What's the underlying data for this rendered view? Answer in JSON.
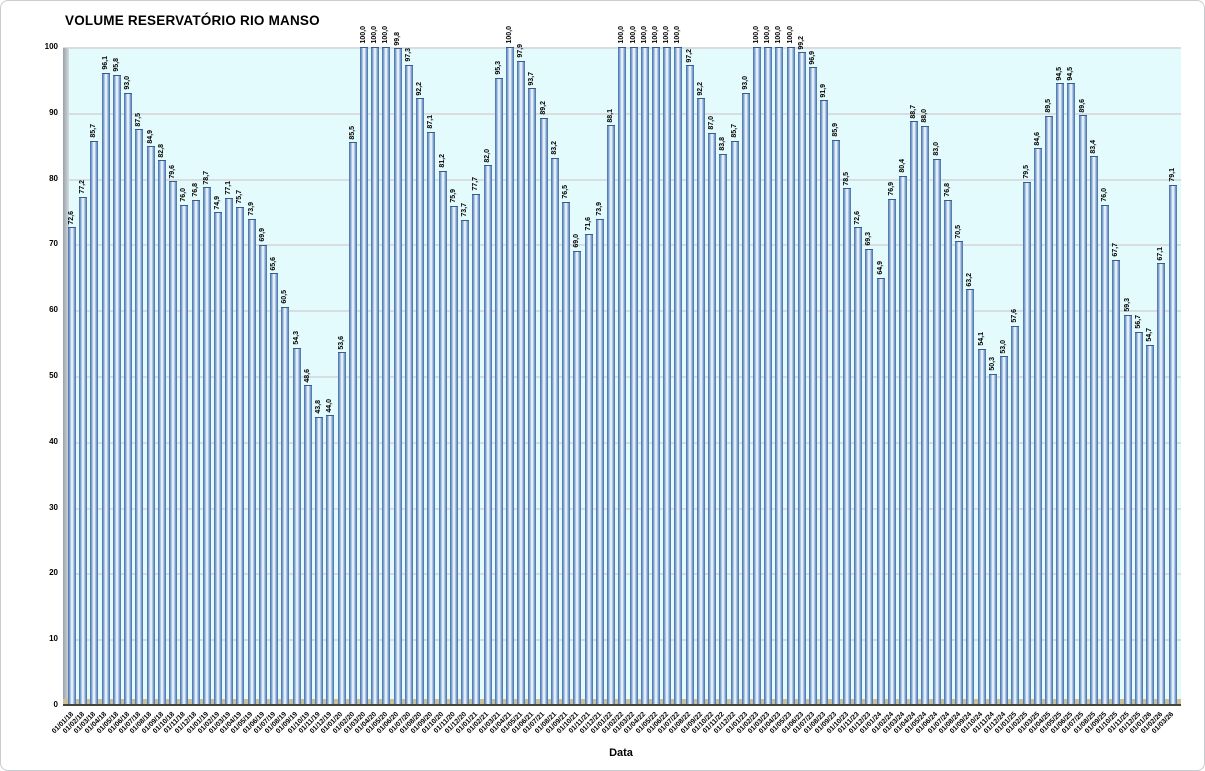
{
  "chart_data": {
    "type": "bar",
    "title": "VOLUME RESERVATÓRIO RIO MANSO",
    "xlabel": "Data",
    "ylabel": "",
    "ylim": [
      0,
      100
    ],
    "y_ticks": [
      "0",
      "10",
      "20",
      "30",
      "40",
      "50",
      "60",
      "70",
      "80",
      "90",
      "100"
    ],
    "grid": "horizontal",
    "legend": "none",
    "decimal_separator": ",",
    "value_label_rotation": 90,
    "category_label_rotation": 45,
    "categories": [
      "01/01/18",
      "01/02/18",
      "01/03/18",
      "01/04/18",
      "01/05/18",
      "01/06/18",
      "01/07/18",
      "01/08/18",
      "01/09/18",
      "01/10/18",
      "01/11/18",
      "01/12/18",
      "01/01/19",
      "01/02/19",
      "01/03/19",
      "01/04/19",
      "01/05/19",
      "01/06/19",
      "01/07/19",
      "01/08/19",
      "01/09/19",
      "01/10/19",
      "01/11/19",
      "01/12/19",
      "01/01/20",
      "01/02/20",
      "01/03/20",
      "01/04/20",
      "01/05/20",
      "01/06/20",
      "01/07/20",
      "01/08/20",
      "01/09/20",
      "01/10/20",
      "01/11/20",
      "01/12/20",
      "01/01/21",
      "01/02/21",
      "01/03/21",
      "01/04/21",
      "01/05/21",
      "01/06/21",
      "01/07/21",
      "01/08/21",
      "01/09/21",
      "01/10/21",
      "01/11/21",
      "01/12/21",
      "01/01/22",
      "01/02/22",
      "01/03/22",
      "01/04/22",
      "01/05/22",
      "01/06/22",
      "01/07/22",
      "01/08/22",
      "01/09/22",
      "01/10/22",
      "01/11/22",
      "01/12/22",
      "01/01/23",
      "01/02/23",
      "01/03/23",
      "01/04/23",
      "01/05/23",
      "01/06/23",
      "01/07/23",
      "01/08/23",
      "01/09/23",
      "01/10/23",
      "01/11/23",
      "01/12/23",
      "01/01/24",
      "01/02/24",
      "01/03/24",
      "01/04/24",
      "01/05/24",
      "01/06/24",
      "01/07/24",
      "01/08/24",
      "01/09/24",
      "01/10/24",
      "01/11/24",
      "01/12/24",
      "01/01/25",
      "01/02/25",
      "01/03/25",
      "01/04/25",
      "01/05/25",
      "01/06/25",
      "01/07/25",
      "01/08/25",
      "01/09/25",
      "01/10/25",
      "01/11/25",
      "01/12/25",
      "01/01/26",
      "01/02/26",
      "01/03/26"
    ],
    "values": [
      72.6,
      77.2,
      85.7,
      96.1,
      95.8,
      93.0,
      87.5,
      84.9,
      82.8,
      79.6,
      76.0,
      76.8,
      78.7,
      74.9,
      77.1,
      75.7,
      73.9,
      69.9,
      65.6,
      60.5,
      54.3,
      48.6,
      43.8,
      44.0,
      53.6,
      85.5,
      100.0,
      100.0,
      100.0,
      99.8,
      97.3,
      92.2,
      87.1,
      81.2,
      75.9,
      73.7,
      77.7,
      82.0,
      95.3,
      100.0,
      97.9,
      93.7,
      89.2,
      83.2,
      76.5,
      69.0,
      71.6,
      73.9,
      88.1,
      100.0,
      100.0,
      100.0,
      100.0,
      100.0,
      100.0,
      97.2,
      92.2,
      87.0,
      83.8,
      85.7,
      93.0,
      100.0,
      100.0,
      100.0,
      100.0,
      99.2,
      96.9,
      91.9,
      85.9,
      78.5,
      72.6,
      69.3,
      64.9,
      76.9,
      80.4,
      88.7,
      88.0,
      83.0,
      76.8,
      70.5,
      63.2,
      54.1,
      50.3,
      53.0,
      57.6,
      79.5,
      84.6,
      89.5,
      94.5,
      94.5,
      89.6,
      83.4,
      76.0,
      67.7,
      59.3,
      56.7,
      54.7,
      67.1,
      79.1
    ],
    "colors": {
      "bar_dark": "#4a6ca1",
      "bar_mid": "#7ba2d2",
      "bar_light": "#edf5fc",
      "plot_bg": "#e3fbfd",
      "gridline": "#d8dde0",
      "wall": "#97a1a8",
      "floor": "#ccc096",
      "baseline": "#45453c",
      "label": "#000000"
    }
  }
}
